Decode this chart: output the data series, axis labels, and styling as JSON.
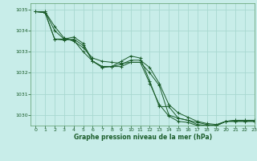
{
  "title": "Graphe pression niveau de la mer (hPa)",
  "background_color": "#c8ede9",
  "grid_color": "#a8d8d0",
  "line_color": "#1a5c2a",
  "spine_color": "#5a9a6a",
  "xlim": [
    -0.5,
    23
  ],
  "ylim": [
    1029.5,
    1035.3
  ],
  "yticks": [
    1030,
    1031,
    1032,
    1033,
    1034,
    1035
  ],
  "xticks": [
    0,
    1,
    2,
    3,
    4,
    5,
    6,
    7,
    8,
    9,
    10,
    11,
    12,
    13,
    14,
    15,
    16,
    17,
    18,
    19,
    20,
    21,
    22,
    23
  ],
  "tick_fontsize": 4.5,
  "xlabel_fontsize": 5.5,
  "series": [
    [
      1034.9,
      1034.9,
      1034.2,
      1033.65,
      1033.5,
      1033.2,
      1032.7,
      1032.55,
      1032.5,
      1032.45,
      1032.5,
      1032.5,
      1032.0,
      1031.4,
      1030.0,
      1029.85,
      1029.75,
      1029.65,
      1029.55,
      1029.5,
      1029.7,
      1029.7,
      1029.7,
      1029.7
    ],
    [
      1034.9,
      1034.9,
      1034.0,
      1033.6,
      1033.55,
      1033.0,
      1032.55,
      1032.3,
      1032.3,
      1032.4,
      1032.6,
      1032.6,
      1032.25,
      1031.5,
      1030.5,
      1030.1,
      1029.9,
      1029.7,
      1029.6,
      1029.55,
      1029.7,
      1029.75,
      1029.75,
      1029.75
    ],
    [
      1034.9,
      1034.85,
      1033.6,
      1033.6,
      1033.7,
      1033.4,
      1032.55,
      1032.3,
      1032.3,
      1032.55,
      1032.8,
      1032.7,
      1031.6,
      1030.4,
      1030.4,
      1029.85,
      1029.75,
      1029.55,
      1029.5,
      1029.5,
      1029.7,
      1029.7,
      1029.7,
      1029.7
    ],
    [
      1034.9,
      1034.85,
      1033.6,
      1033.55,
      1033.6,
      1033.3,
      1032.55,
      1032.25,
      1032.3,
      1032.3,
      1032.5,
      1032.5,
      1031.5,
      1030.5,
      1029.95,
      1029.7,
      1029.65,
      1029.5,
      1029.5,
      1029.5,
      1029.7,
      1029.75,
      1029.75,
      1029.75
    ]
  ]
}
